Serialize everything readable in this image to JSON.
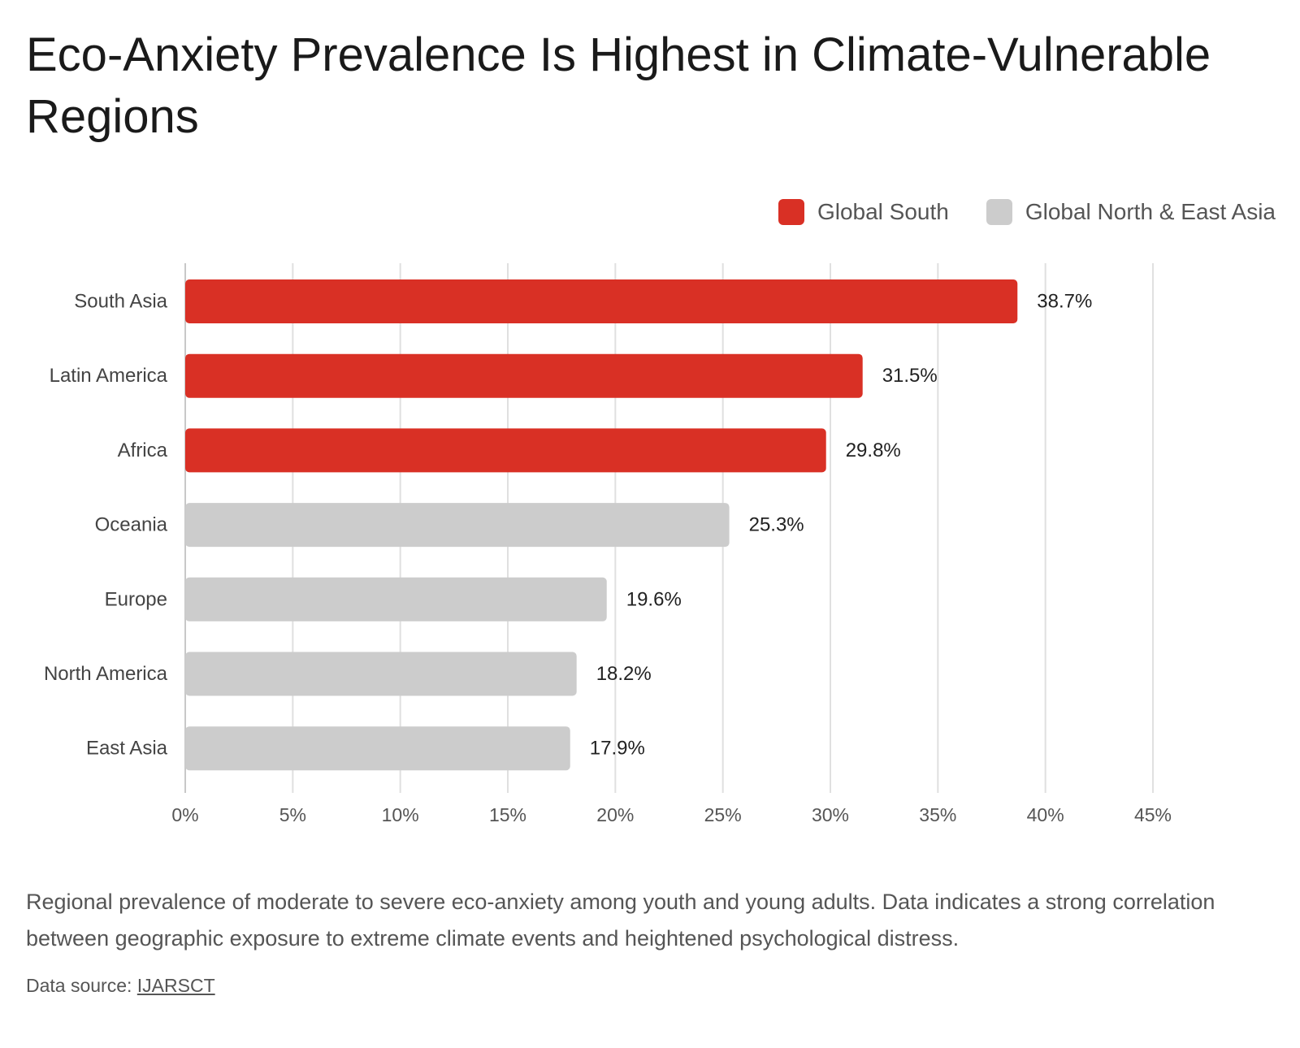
{
  "header": {
    "title": "Eco-Anxiety Prevalence Is Highest in Climate-Vulnerable Regions"
  },
  "legend": {
    "items": [
      {
        "label": "Global South",
        "color": "#d93025"
      },
      {
        "label": "Global North & East Asia",
        "color": "#cccccc"
      }
    ]
  },
  "chart_data": {
    "type": "bar",
    "orientation": "horizontal",
    "title": "Eco-Anxiety Prevalence Is Highest in Climate-Vulnerable Regions",
    "xlabel": "",
    "ylabel": "",
    "categories": [
      "South Asia",
      "Latin America",
      "Africa",
      "Oceania",
      "Europe",
      "North America",
      "East Asia"
    ],
    "values": [
      38.7,
      31.5,
      29.8,
      25.3,
      19.6,
      18.2,
      17.9
    ],
    "value_labels": [
      "38.7%",
      "31.5%",
      "29.8%",
      "25.3%",
      "19.6%",
      "18.2%",
      "17.9%"
    ],
    "groups": [
      "Global South",
      "Global South",
      "Global South",
      "Global North & East Asia",
      "Global North & East Asia",
      "Global North & East Asia",
      "Global North & East Asia"
    ],
    "group_colors": {
      "Global South": "#d93025",
      "Global North & East Asia": "#cccccc"
    },
    "xlim": [
      0,
      45
    ],
    "xticks": [
      0,
      5,
      10,
      15,
      20,
      25,
      30,
      35,
      40,
      45
    ],
    "xtick_labels": [
      "0%",
      "5%",
      "10%",
      "15%",
      "20%",
      "25%",
      "30%",
      "35%",
      "40%",
      "45%"
    ],
    "grid": true,
    "legend_position": "top-right"
  },
  "footer": {
    "caption": "Regional prevalence of moderate to severe eco-anxiety among youth and young adults. Data indicates a strong correlation between geographic exposure to extreme climate events and heightened psychological distress.",
    "source_prefix": "Data source:",
    "source_link": "IJARSCT"
  }
}
